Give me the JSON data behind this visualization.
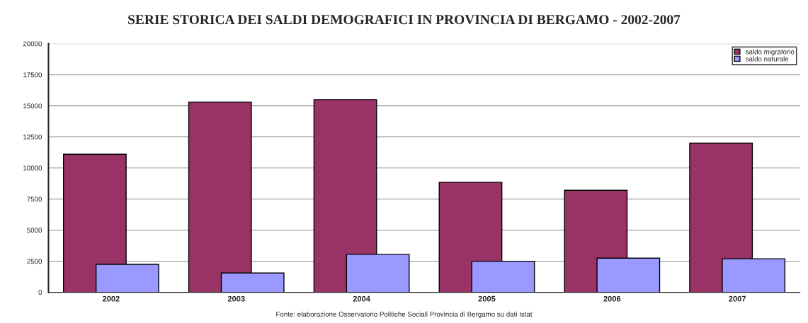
{
  "chart_data": {
    "type": "bar",
    "title": "SERIE STORICA DEI SALDI DEMOGRAFICI IN PROVINCIA DI BERGAMO - 2002-2007",
    "categories": [
      "2002",
      "2003",
      "2004",
      "2005",
      "2006",
      "2007"
    ],
    "series": [
      {
        "name": "saldo migratorio",
        "color": "#993366",
        "values": [
          11100,
          15300,
          15500,
          8850,
          8200,
          12000
        ]
      },
      {
        "name": "saldo naturale",
        "color": "#9999ff",
        "values": [
          2250,
          1550,
          3050,
          2500,
          2750,
          2700
        ]
      }
    ],
    "ylim": [
      0,
      20000
    ],
    "yticks": [
      0,
      2500,
      5000,
      7500,
      10000,
      12500,
      15000,
      17500,
      20000
    ],
    "grid": "y",
    "legend": "top right",
    "annotations": [
      "Fonte: elaborazione Osservatorio Politiche Sociali Provincia di Bergamo su dati Istat"
    ]
  }
}
